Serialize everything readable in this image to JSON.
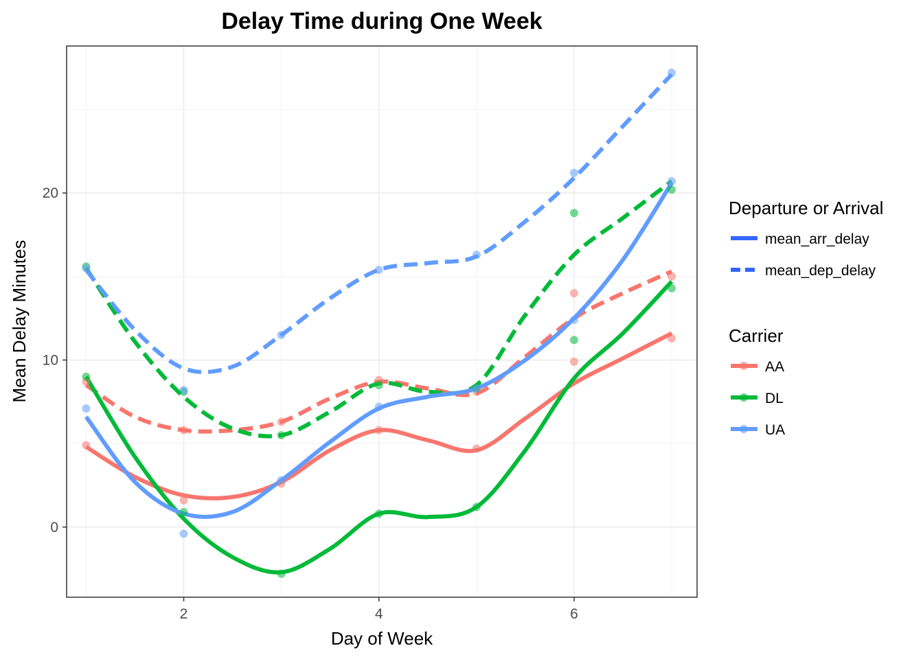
{
  "chart_data": {
    "type": "line",
    "title": "Delay Time during One Week",
    "xlabel": "Day of Week",
    "ylabel": "Mean Delay Minutes",
    "xlim": [
      0.8,
      7.26
    ],
    "ylim": [
      -4.2,
      28.8
    ],
    "x_ticks": [
      2,
      4,
      6
    ],
    "y_ticks": [
      0,
      10,
      20
    ],
    "grid": true,
    "legend_position": "right",
    "legends": [
      {
        "title": "Departure or Arrival",
        "entries": [
          {
            "label": "mean_arr_delay",
            "linetype": "solid"
          },
          {
            "label": "mean_dep_delay",
            "linetype": "dashed"
          }
        ]
      },
      {
        "title": "Carrier",
        "entries": [
          {
            "label": "AA",
            "color": "#F8766D"
          },
          {
            "label": "DL",
            "color": "#00BA38"
          },
          {
            "label": "UA",
            "color": "#619CFF"
          }
        ]
      }
    ],
    "x": [
      1,
      2,
      3,
      4,
      5,
      6,
      7
    ],
    "series": [
      {
        "carrier": "AA",
        "metric": "mean_arr_delay",
        "color": "#F8766D",
        "linetype": "solid",
        "points": [
          4.9,
          1.6,
          2.6,
          5.8,
          4.7,
          9.9,
          11.3
        ],
        "smooth": [
          [
            1,
            4.8
          ],
          [
            1.5,
            3.0
          ],
          [
            2,
            1.9
          ],
          [
            2.5,
            1.8
          ],
          [
            3,
            2.7
          ],
          [
            3.5,
            4.6
          ],
          [
            4,
            5.8
          ],
          [
            4.5,
            5.2
          ],
          [
            5,
            4.6
          ],
          [
            5.5,
            6.5
          ],
          [
            6,
            8.6
          ],
          [
            6.5,
            10.1
          ],
          [
            7,
            11.6
          ]
        ]
      },
      {
        "carrier": "AA",
        "metric": "mean_dep_delay",
        "color": "#F8766D",
        "linetype": "dashed",
        "points": [
          8.7,
          5.8,
          6.3,
          8.8,
          8.1,
          14.0,
          15.0
        ],
        "smooth": [
          [
            1,
            8.5
          ],
          [
            1.5,
            6.6
          ],
          [
            2,
            5.8
          ],
          [
            2.5,
            5.8
          ],
          [
            3,
            6.3
          ],
          [
            3.5,
            7.7
          ],
          [
            4,
            8.7
          ],
          [
            4.5,
            8.3
          ],
          [
            5,
            8.0
          ],
          [
            5.5,
            10.2
          ],
          [
            6,
            12.5
          ],
          [
            6.5,
            14.0
          ],
          [
            7,
            15.3
          ]
        ]
      },
      {
        "carrier": "DL",
        "metric": "mean_arr_delay",
        "color": "#00BA38",
        "linetype": "solid",
        "points": [
          9.0,
          0.9,
          -2.8,
          0.8,
          1.2,
          11.2,
          14.3
        ],
        "smooth": [
          [
            1,
            9.0
          ],
          [
            1.5,
            4.2
          ],
          [
            2,
            0.5
          ],
          [
            2.5,
            -1.8
          ],
          [
            3,
            -2.7
          ],
          [
            3.5,
            -1.3
          ],
          [
            4,
            0.8
          ],
          [
            4.5,
            0.6
          ],
          [
            5,
            1.2
          ],
          [
            5.5,
            4.6
          ],
          [
            6,
            8.9
          ],
          [
            6.5,
            11.6
          ],
          [
            7,
            14.7
          ]
        ]
      },
      {
        "carrier": "DL",
        "metric": "mean_dep_delay",
        "color": "#00BA38",
        "linetype": "dashed",
        "points": [
          15.6,
          8.1,
          5.5,
          8.5,
          8.3,
          18.8,
          20.2
        ],
        "smooth": [
          [
            1,
            15.5
          ],
          [
            1.5,
            11.1
          ],
          [
            2,
            7.8
          ],
          [
            2.5,
            5.9
          ],
          [
            3,
            5.5
          ],
          [
            3.5,
            6.9
          ],
          [
            4,
            8.6
          ],
          [
            4.5,
            8.1
          ],
          [
            5,
            8.5
          ],
          [
            5.5,
            12.7
          ],
          [
            6,
            16.3
          ],
          [
            6.5,
            18.5
          ],
          [
            7,
            20.7
          ]
        ]
      },
      {
        "carrier": "UA",
        "metric": "mean_arr_delay",
        "color": "#619CFF",
        "linetype": "solid",
        "points": [
          7.1,
          -0.4,
          2.8,
          7.2,
          8.3,
          12.4,
          20.7
        ],
        "smooth": [
          [
            1,
            6.6
          ],
          [
            1.5,
            2.7
          ],
          [
            2,
            0.8
          ],
          [
            2.5,
            0.9
          ],
          [
            3,
            2.8
          ],
          [
            3.5,
            5.1
          ],
          [
            4,
            7.1
          ],
          [
            4.5,
            7.8
          ],
          [
            5,
            8.3
          ],
          [
            5.5,
            10.0
          ],
          [
            6,
            12.5
          ],
          [
            6.5,
            16.0
          ],
          [
            7,
            20.6
          ]
        ]
      },
      {
        "carrier": "UA",
        "metric": "mean_dep_delay",
        "color": "#619CFF",
        "linetype": "dashed",
        "points": [
          15.5,
          8.2,
          11.5,
          15.4,
          16.3,
          21.2,
          27.2
        ],
        "smooth": [
          [
            1,
            15.4
          ],
          [
            1.5,
            11.8
          ],
          [
            2,
            9.5
          ],
          [
            2.5,
            9.6
          ],
          [
            3,
            11.5
          ],
          [
            3.5,
            13.7
          ],
          [
            4,
            15.4
          ],
          [
            4.5,
            15.8
          ],
          [
            5,
            16.2
          ],
          [
            5.5,
            18.3
          ],
          [
            6,
            20.9
          ],
          [
            6.5,
            24.0
          ],
          [
            7,
            27.1
          ]
        ]
      }
    ]
  }
}
